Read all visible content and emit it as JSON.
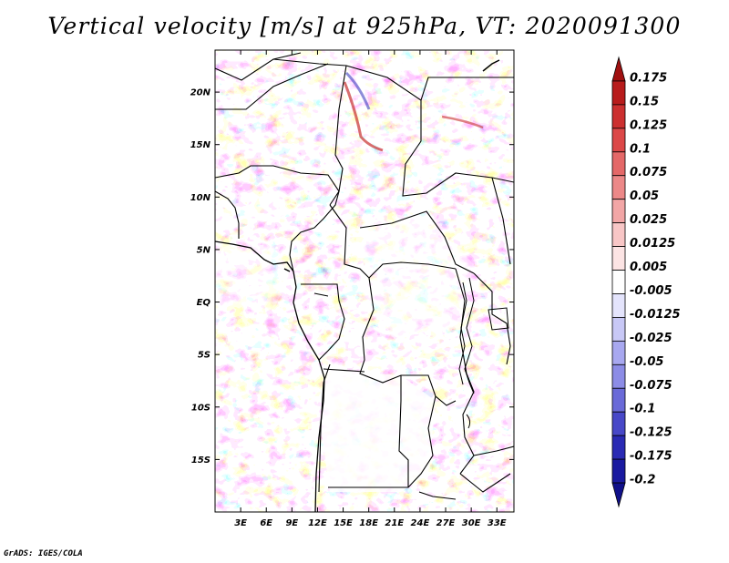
{
  "title": "Vertical velocity [m/s] at 925hPa, VT: 2020091300",
  "credit": "GrADS: IGES/COLA",
  "map": {
    "lat_ticks": [
      "20N",
      "15N",
      "10N",
      "5N",
      "EQ",
      "5S",
      "10S",
      "15S"
    ],
    "lon_ticks": [
      "3E",
      "6E",
      "9E",
      "12E",
      "15E",
      "18E",
      "21E",
      "24E",
      "27E",
      "30E",
      "33E"
    ]
  },
  "colorbar": {
    "labels": [
      "0.175",
      "0.15",
      "0.125",
      "0.1",
      "0.075",
      "0.05",
      "0.025",
      "0.0125",
      "0.005",
      "-0.005",
      "-0.0125",
      "-0.025",
      "-0.05",
      "-0.075",
      "-0.1",
      "-0.125",
      "-0.175",
      "-0.2"
    ],
    "colors": [
      "#a01010",
      "#b81c1c",
      "#cc3030",
      "#dc4848",
      "#e46868",
      "#ec8888",
      "#f2a6a6",
      "#f8c6c6",
      "#fce4e4",
      "#ffffff",
      "#e4e4fc",
      "#c8c8f6",
      "#a8a8f0",
      "#8c8ce6",
      "#6a6ad8",
      "#4848c8",
      "#2a2ab4",
      "#1a1aa0",
      "#10108a"
    ]
  },
  "chart_data": {
    "type": "heatmap",
    "title": "Vertical velocity [m/s] at 925hPa, VT: 2020091300",
    "variable": "Vertical velocity",
    "units": "m/s",
    "level": "925hPa",
    "valid_time": "2020091300",
    "lon_range": [
      0,
      35
    ],
    "lat_range": [
      -20,
      24
    ],
    "x_tick_labels": [
      "3E",
      "6E",
      "9E",
      "12E",
      "15E",
      "18E",
      "21E",
      "24E",
      "27E",
      "30E",
      "33E"
    ],
    "y_tick_labels": [
      "20N",
      "15N",
      "10N",
      "5N",
      "EQ",
      "5S",
      "10S",
      "15S"
    ],
    "color_levels": [
      0.175,
      0.15,
      0.125,
      0.1,
      0.075,
      0.05,
      0.025,
      0.0125,
      0.005,
      -0.005,
      -0.0125,
      -0.025,
      -0.05,
      -0.075,
      -0.1,
      -0.125,
      -0.175,
      -0.2
    ]
  }
}
